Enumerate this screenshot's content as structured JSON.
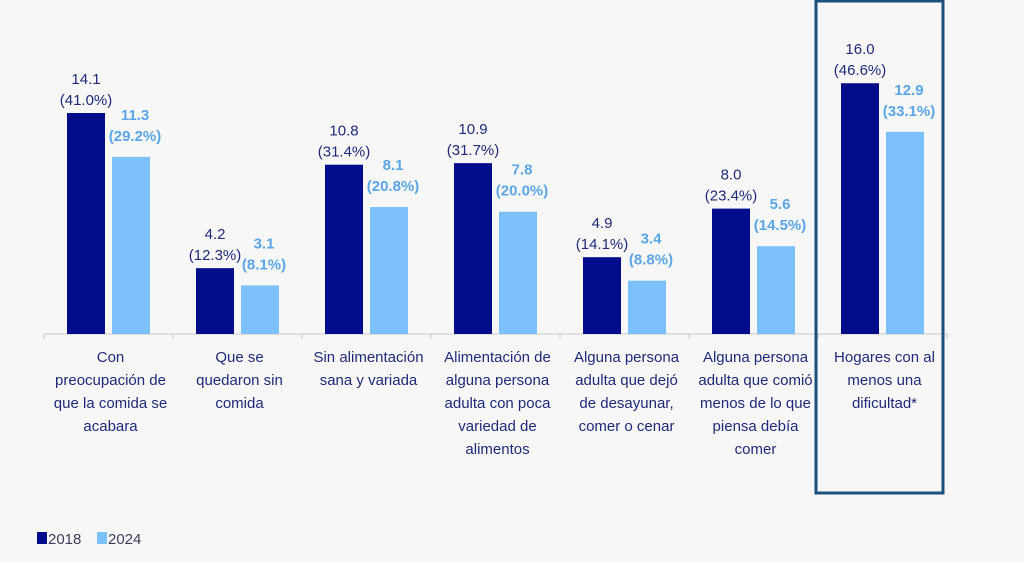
{
  "chart_data": {
    "type": "bar",
    "title": "",
    "xlabel": "",
    "ylabel": "",
    "ylim": [
      0,
      16.0
    ],
    "grid": false,
    "legend_position": "bottom-left",
    "categories": [
      [
        "Con",
        "preocupación de",
        "que la  comida se",
        "acabara"
      ],
      [
        "Que se",
        "quedaron sin",
        "comida"
      ],
      [
        "Sin alimentación",
        "sana y variada"
      ],
      [
        "Alimentación de",
        "alguna persona",
        "adulta con poca",
        "variedad de",
        "alimentos"
      ],
      [
        "Alguna persona",
        "adulta que dejó",
        "de desayunar,",
        "comer o cenar"
      ],
      [
        "Alguna persona",
        "adulta que comió",
        "menos de lo que",
        "piensa debía",
        "comer"
      ],
      [
        "Hogares con al",
        "menos una",
        "dificultad*"
      ]
    ],
    "highlighted_category_index": 6,
    "series": [
      {
        "name": "2018",
        "color": "#000c8a",
        "label_color": "#1f2a78",
        "values": [
          14.1,
          4.2,
          10.8,
          10.9,
          4.9,
          8.0,
          16.0
        ],
        "percent_labels": [
          "(41.0%)",
          "(12.3%)",
          "(31.4%)",
          "(31.7%)",
          "(14.1%)",
          "(23.4%)",
          "(46.6%)"
        ]
      },
      {
        "name": "2024",
        "color": "#7cc1fb",
        "label_color": "#5aa6e6",
        "values": [
          11.3,
          3.1,
          8.1,
          7.8,
          3.4,
          5.6,
          12.9
        ],
        "percent_labels": [
          "(29.2%)",
          "(8.1%)",
          "(20.8%)",
          "(20.0%)",
          "(8.8%)",
          "(14.5%)",
          "(33.1%)"
        ]
      }
    ]
  },
  "colors": {
    "axis": "#c8c8cc",
    "highlight_border": "#1b4f7c",
    "background": "#f7f7f8"
  }
}
